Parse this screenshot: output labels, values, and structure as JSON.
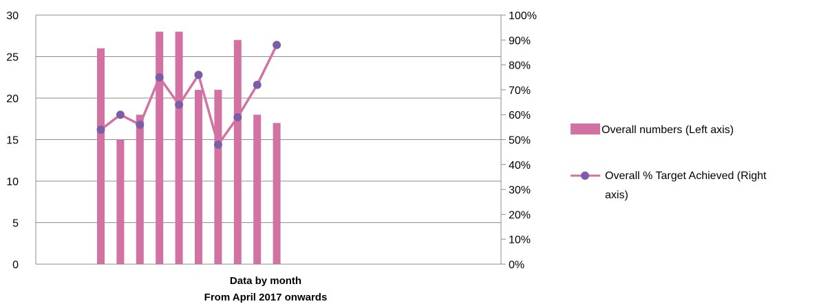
{
  "chart_data": {
    "type": "bar+line",
    "x_label_lines": [
      "Data by month",
      "From April 2017 onwards"
    ],
    "left_axis": {
      "range": [
        0,
        30
      ],
      "ticks": [
        0,
        5,
        10,
        15,
        20,
        25,
        30
      ],
      "tick_labels": [
        "0",
        "5",
        "10",
        "15",
        "20",
        "25",
        "30"
      ]
    },
    "right_axis": {
      "range": [
        0,
        100
      ],
      "ticks": [
        0,
        10,
        20,
        30,
        40,
        50,
        60,
        70,
        80,
        90,
        100
      ],
      "tick_labels": [
        "0%",
        "10%",
        "20%",
        "30%",
        "40%",
        "50%",
        "60%",
        "70%",
        "80%",
        "90%",
        "100%"
      ]
    },
    "grid": "horizontal",
    "legend_position": "right",
    "series": [
      {
        "name": "Overall numbers (Left axis)",
        "type": "bar",
        "axis": "left",
        "color": "#d272a2",
        "values": [
          26,
          15,
          18,
          28,
          28,
          21,
          21,
          27,
          18,
          17
        ]
      },
      {
        "name": "Overall % Target Achieved (Right axis)",
        "legend_lines": [
          "Overall % Target Achieved (Right",
          "axis)"
        ],
        "type": "line",
        "axis": "right",
        "color": "#d272a2",
        "marker_color": "#7b5ea7",
        "values": [
          54,
          60,
          56,
          75,
          64,
          76,
          48,
          59,
          72,
          88
        ]
      }
    ]
  }
}
